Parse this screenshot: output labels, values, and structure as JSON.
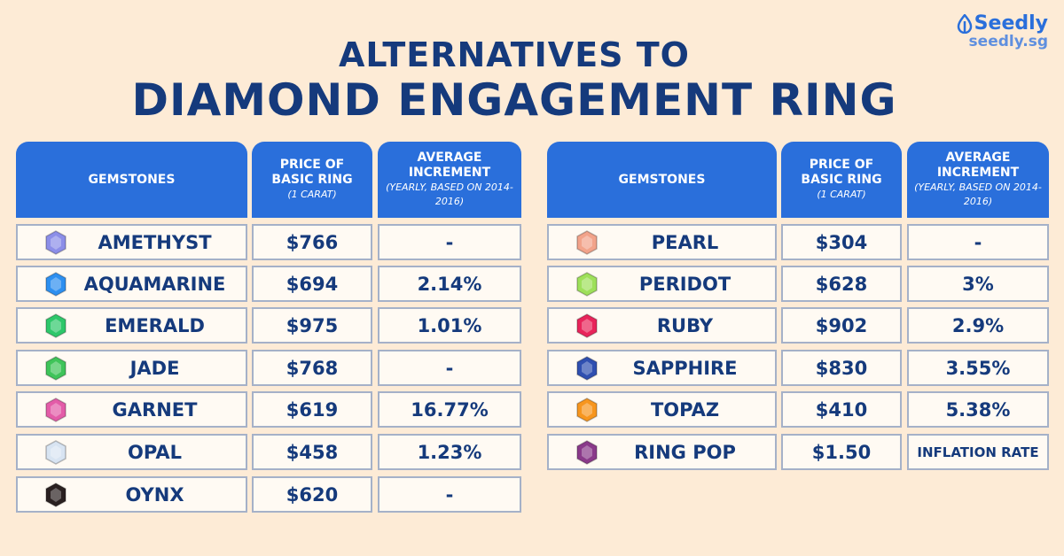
{
  "title_line1": "ALTERNATIVES TO",
  "title_line2": "DIAMOND ENGAGEMENT RING",
  "logo": {
    "brand": "Seedly",
    "url": "seedly.sg"
  },
  "headers": {
    "gem": "GEMSTONES",
    "price": "PRICE OF BASIC RING",
    "price_sub": "(1 CARAT)",
    "inc": "AVERAGE INCREMENT",
    "inc_sub": "(YEARLY, BASED ON 2014-2016)"
  },
  "left": [
    {
      "name": "AMETHYST",
      "price": "$766",
      "inc": "-",
      "icon": "amethyst-icon",
      "color": "#8c8ee8"
    },
    {
      "name": "AQUAMARINE",
      "price": "$694",
      "inc": "2.14%",
      "icon": "aquamarine-icon",
      "color": "#2d8ff0"
    },
    {
      "name": "EMERALD",
      "price": "$975",
      "inc": "1.01%",
      "icon": "emerald-icon",
      "color": "#2ec76a"
    },
    {
      "name": "JADE",
      "price": "$768",
      "inc": "-",
      "icon": "jade-icon",
      "color": "#3fc45a"
    },
    {
      "name": "GARNET",
      "price": "$619",
      "inc": "16.77%",
      "icon": "garnet-icon",
      "color": "#e35ca8"
    },
    {
      "name": "OPAL",
      "price": "$458",
      "inc": "1.23%",
      "icon": "opal-icon",
      "color": "#d8e4f2"
    },
    {
      "name": "OYNX",
      "price": "$620",
      "inc": "-",
      "icon": "onyx-icon",
      "color": "#2a2020"
    }
  ],
  "right": [
    {
      "name": "PEARL",
      "price": "$304",
      "inc": "-",
      "icon": "pearl-icon",
      "color": "#f2a38a"
    },
    {
      "name": "PERIDOT",
      "price": "$628",
      "inc": "3%",
      "icon": "peridot-icon",
      "color": "#9ee05a"
    },
    {
      "name": "RUBY",
      "price": "$902",
      "inc": "2.9%",
      "icon": "ruby-icon",
      "color": "#e8245a"
    },
    {
      "name": "SAPPHIRE",
      "price": "$830",
      "inc": "3.55%",
      "icon": "sapphire-icon",
      "color": "#2f4fb0"
    },
    {
      "name": "TOPAZ",
      "price": "$410",
      "inc": "5.38%",
      "icon": "topaz-icon",
      "color": "#f7961e"
    },
    {
      "name": "RING POP",
      "price": "$1.50",
      "inc": "INFLATION RATE",
      "icon": "ring-pop-icon",
      "color": "#8a3a8a"
    }
  ]
}
